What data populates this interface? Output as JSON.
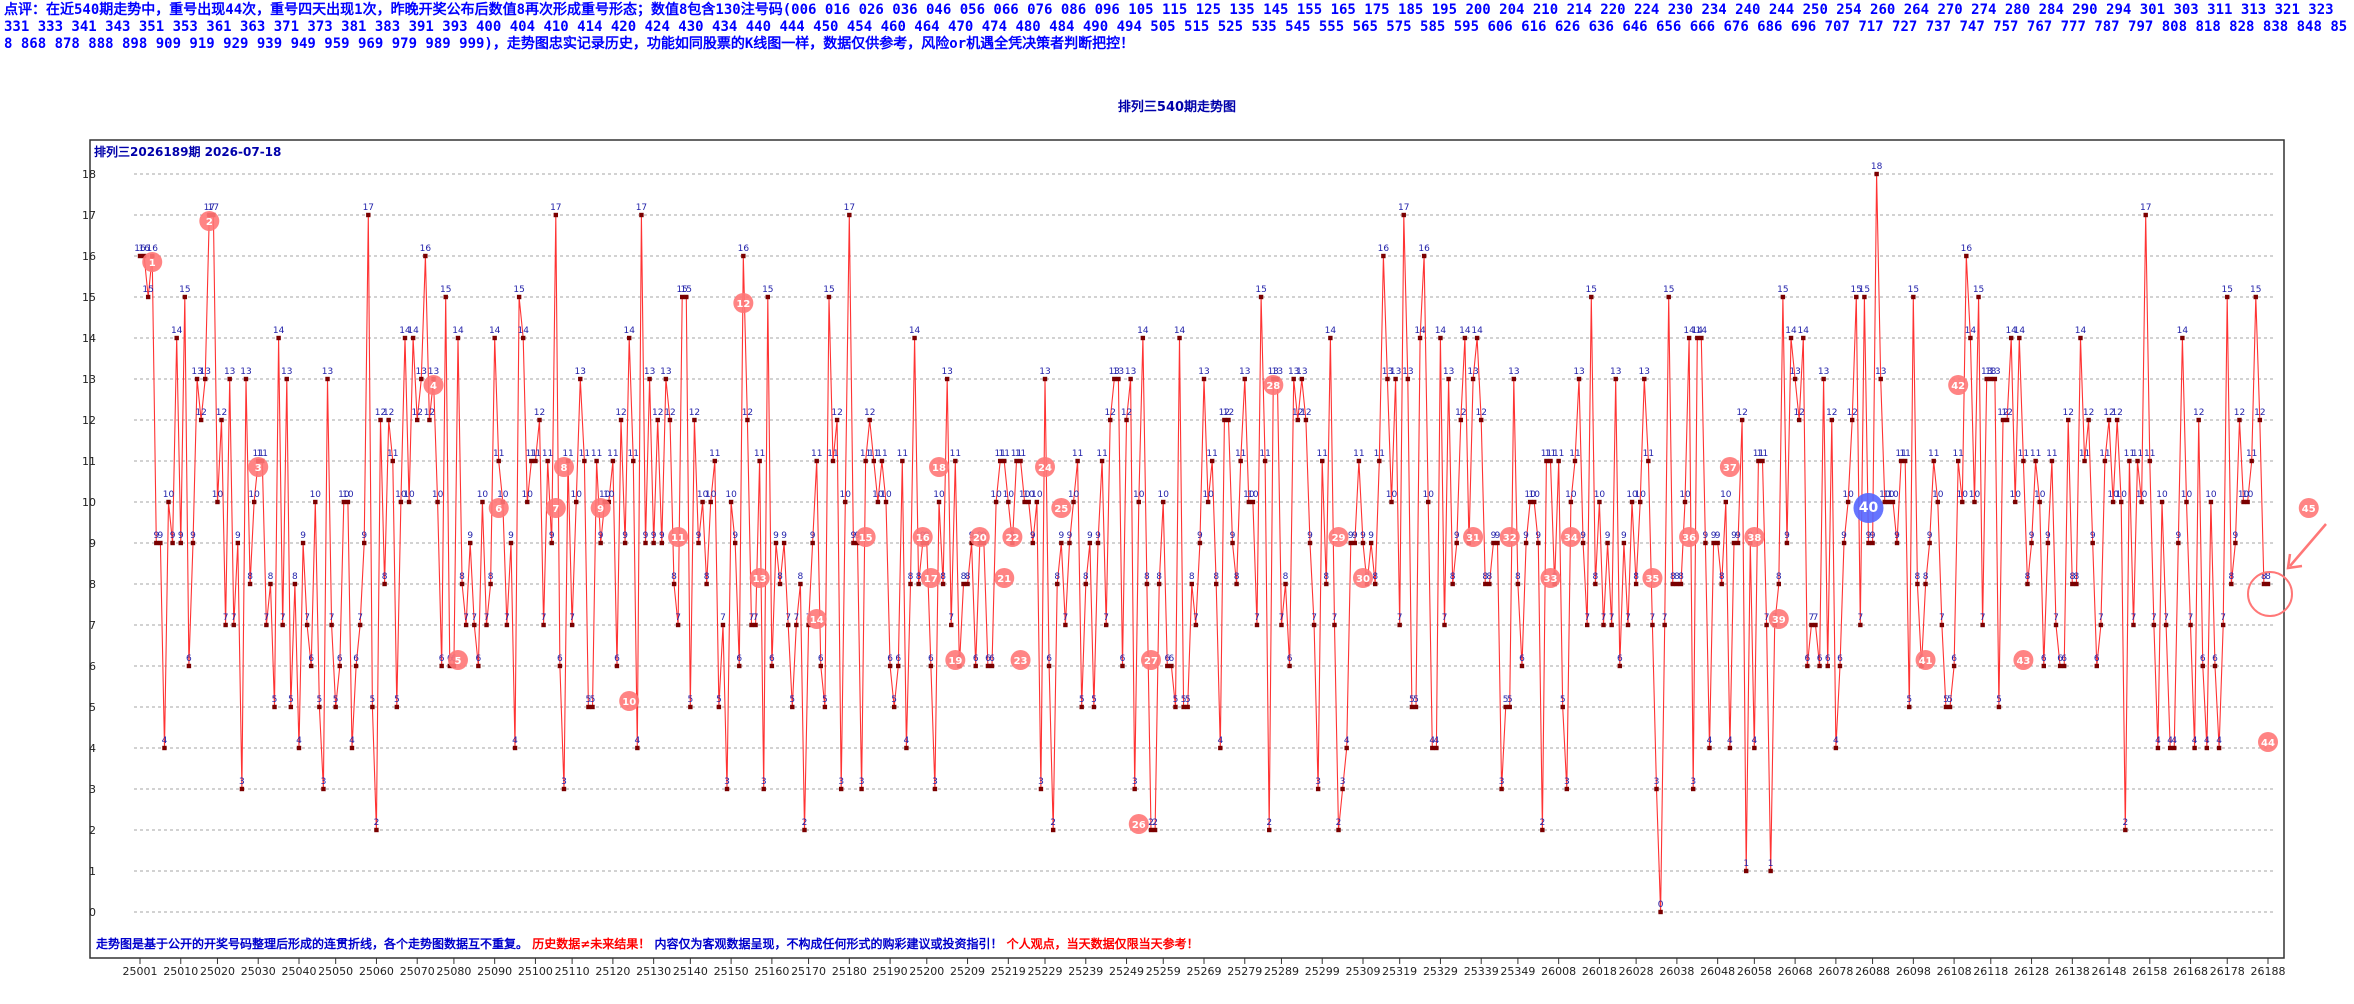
{
  "note_text": "点评：在近540期走势中，重号出现44次，重号四天出现1次，昨晚开奖公布后数值8再次形成重号形态；数值8包含130注号码(006  016  026  036  046  056  066  076  086  096  105  115  125  135  145  155  165  175  185  195  200  204  210  214  220  224  230  234  240  244  250  254  260  264  270  274  280  284  290  294  301  303  311  313  321  323  331  333  341  343  351  353  361  363  371  373  381  383  391  393  400  404  410  414  420  424  430  434  440  444  450  454  460  464  470  474  480  484  490  494  505  515  525  535  545  555  565  575  585  595  606  616  626  636  646  656  666  676  686  696  707  717  727  737  747  757  767  777  787  797  808  818  828  838  848  858  868  878  888  898  909  919  929  939  949  959  969  979  989  999)，走势图忠实记录历史，功能如同股票的K线图一样，数据仅供参考，风险or机遇全凭决策者判断把控！",
  "chart_data": {
    "type": "line",
    "title": "排列三540期走势图",
    "subtitle": "排列三2026189期  2026-07-18",
    "ylim": [
      0,
      18
    ],
    "y_ticks": [
      0,
      1,
      2,
      3,
      4,
      5,
      6,
      7,
      8,
      9,
      10,
      11,
      12,
      13,
      14,
      15,
      16,
      17,
      18
    ],
    "x_tick_labels": [
      "25001",
      "25010",
      "25020",
      "25030",
      "25040",
      "25050",
      "25060",
      "25070",
      "25080",
      "25090",
      "25100",
      "25110",
      "25120",
      "25130",
      "25140",
      "25150",
      "25160",
      "25170",
      "25180",
      "25190",
      "25200",
      "25209",
      "25219",
      "25229",
      "25239",
      "25249",
      "25259",
      "25269",
      "25279",
      "25289",
      "25299",
      "25309",
      "25319",
      "25329",
      "25339",
      "25349",
      "26008",
      "26018",
      "26028",
      "26038",
      "26048",
      "26058",
      "26068",
      "26078",
      "26088",
      "26098",
      "26108",
      "26118",
      "26128",
      "26138",
      "26148",
      "26158",
      "26168",
      "26178",
      "26188"
    ],
    "grid": true,
    "values": [
      16,
      16,
      15,
      16,
      9,
      9,
      4,
      10,
      9,
      14,
      9,
      15,
      6,
      9,
      13,
      12,
      13,
      17,
      17,
      10,
      12,
      7,
      13,
      7,
      9,
      3,
      13,
      8,
      10,
      11,
      11,
      7,
      8,
      5,
      14,
      7,
      13,
      5,
      8,
      4,
      9,
      7,
      6,
      10,
      5,
      3,
      13,
      7,
      5,
      6,
      10,
      10,
      4,
      6,
      7,
      9,
      17,
      5,
      2,
      12,
      8,
      12,
      11,
      5,
      10,
      14,
      10,
      14,
      12,
      13,
      16,
      12,
      13,
      10,
      6,
      15,
      6,
      6,
      14,
      8,
      7,
      9,
      7,
      6,
      10,
      7,
      8,
      14,
      11,
      10,
      7,
      9,
      4,
      15,
      14,
      10,
      11,
      11,
      12,
      7,
      11,
      9,
      17,
      6,
      3,
      11,
      7,
      10,
      13,
      11,
      5,
      5,
      11,
      9,
      10,
      10,
      11,
      6,
      12,
      9,
      14,
      11,
      4,
      17,
      9,
      13,
      9,
      12,
      9,
      13,
      12,
      8,
      7,
      15,
      15,
      5,
      12,
      9,
      10,
      8,
      10,
      11,
      5,
      7,
      3,
      10,
      9,
      6,
      16,
      12,
      7,
      7,
      11,
      3,
      15,
      6,
      9,
      8,
      9,
      7,
      5,
      7,
      8,
      2,
      7,
      9,
      11,
      6,
      5,
      15,
      11,
      12,
      3,
      10,
      17,
      9,
      9,
      3,
      11,
      12,
      11,
      10,
      11,
      10,
      6,
      5,
      6,
      11,
      4,
      8,
      14,
      8,
      9,
      9,
      6,
      3,
      10,
      8,
      13,
      7,
      11,
      6,
      8,
      8,
      9,
      6,
      9,
      9,
      6,
      6,
      10,
      11,
      11,
      10,
      9,
      11,
      11,
      10,
      10,
      9,
      10,
      3,
      13,
      6,
      2,
      8,
      9,
      7,
      9,
      10,
      11,
      5,
      8,
      9,
      5,
      9,
      11,
      7,
      12,
      13,
      13,
      6,
      12,
      13,
      3,
      10,
      14,
      8,
      2,
      2,
      8,
      10,
      6,
      6,
      5,
      14,
      5,
      5,
      8,
      7,
      9,
      13,
      10,
      11,
      8,
      4,
      12,
      12,
      9,
      8,
      11,
      13,
      10,
      10,
      7,
      15,
      11,
      2,
      13,
      13,
      7,
      8,
      6,
      13,
      12,
      13,
      12,
      9,
      7,
      3,
      11,
      8,
      14,
      7,
      2,
      3,
      4,
      9,
      9,
      11,
      9,
      8,
      9,
      8,
      11,
      16,
      13,
      10,
      13,
      7,
      17,
      13,
      5,
      5,
      14,
      16,
      10,
      4,
      4,
      14,
      7,
      13,
      8,
      9,
      12,
      14,
      9,
      13,
      14,
      12,
      8,
      8,
      9,
      9,
      3,
      5,
      5,
      13,
      8,
      6,
      9,
      10,
      10,
      9,
      2,
      11,
      11,
      8,
      11,
      5,
      3,
      10,
      11,
      13,
      9,
      7,
      15,
      8,
      10,
      7,
      9,
      7,
      13,
      6,
      9,
      7,
      10,
      8,
      10,
      13,
      11,
      7,
      3,
      0,
      7,
      15,
      8,
      8,
      8,
      10,
      14,
      3,
      14,
      14,
      9,
      4,
      9,
      9,
      8,
      10,
      4,
      9,
      9,
      12,
      1,
      9,
      4,
      11,
      11,
      7,
      1,
      7,
      8,
      15,
      9,
      14,
      13,
      12,
      14,
      6,
      7,
      7,
      6,
      13,
      6,
      12,
      4,
      6,
      9,
      10,
      12,
      15,
      7,
      15,
      9,
      9,
      18,
      13,
      10,
      10,
      10,
      9,
      11,
      11,
      5,
      15,
      8,
      6,
      8,
      9,
      11,
      10,
      7,
      5,
      5,
      6,
      11,
      10,
      16,
      14,
      10,
      15,
      7,
      13,
      13,
      13,
      5,
      12,
      12,
      14,
      10,
      14,
      11,
      8,
      9,
      11,
      10,
      6,
      9,
      11,
      7,
      6,
      6,
      12,
      8,
      8,
      14,
      11,
      12,
      9,
      6,
      7,
      11,
      12,
      10,
      12,
      10,
      2,
      11,
      7,
      11,
      10,
      17,
      11,
      7,
      4,
      10,
      7,
      4,
      4,
      9,
      14,
      10,
      7,
      4,
      12,
      6,
      4,
      10,
      6,
      4,
      7,
      15,
      8,
      9,
      12,
      10,
      10,
      11,
      15,
      12,
      8,
      8
    ],
    "highlight_badges": [
      {
        "index": 3,
        "value": 16,
        "label": "1"
      },
      {
        "index": 17,
        "value": 17,
        "label": "2"
      },
      {
        "index": 29,
        "value": 11,
        "label": "3"
      },
      {
        "index": 72,
        "value": 13,
        "label": "4"
      },
      {
        "index": 78,
        "value": 6,
        "label": "5"
      },
      {
        "index": 88,
        "value": 10,
        "label": "6"
      },
      {
        "index": 102,
        "value": 10,
        "label": "7"
      },
      {
        "index": 104,
        "value": 11,
        "label": "8"
      },
      {
        "index": 113,
        "value": 10,
        "label": "9"
      },
      {
        "index": 120,
        "value": 5,
        "label": "10"
      },
      {
        "index": 132,
        "value": 9,
        "label": "11"
      },
      {
        "index": 148,
        "value": 15,
        "label": "12"
      },
      {
        "index": 152,
        "value": 8,
        "label": "13"
      },
      {
        "index": 166,
        "value": 7,
        "label": "14"
      },
      {
        "index": 178,
        "value": 9,
        "label": "15"
      },
      {
        "index": 192,
        "value": 9,
        "label": "16"
      },
      {
        "index": 194,
        "value": 8,
        "label": "17"
      },
      {
        "index": 196,
        "value": 11,
        "label": "18"
      },
      {
        "index": 200,
        "value": 6,
        "label": "19"
      },
      {
        "index": 206,
        "value": 9,
        "label": "20"
      },
      {
        "index": 212,
        "value": 8,
        "label": "21"
      },
      {
        "index": 214,
        "value": 9,
        "label": "22"
      },
      {
        "index": 216,
        "value": 6,
        "label": "23"
      },
      {
        "index": 222,
        "value": 11,
        "label": "24"
      },
      {
        "index": 226,
        "value": 10,
        "label": "25"
      },
      {
        "index": 245,
        "value": 2,
        "label": "26"
      },
      {
        "index": 248,
        "value": 6,
        "label": "27"
      },
      {
        "index": 278,
        "value": 13,
        "label": "28"
      },
      {
        "index": 294,
        "value": 9,
        "label": "29"
      },
      {
        "index": 300,
        "value": 8,
        "label": "30"
      },
      {
        "index": 327,
        "value": 9,
        "label": "31"
      },
      {
        "index": 336,
        "value": 9,
        "label": "32"
      },
      {
        "index": 346,
        "value": 8,
        "label": "33"
      },
      {
        "index": 351,
        "value": 9,
        "label": "34"
      },
      {
        "index": 371,
        "value": 8,
        "label": "35"
      },
      {
        "index": 380,
        "value": 9,
        "label": "36"
      },
      {
        "index": 390,
        "value": 11,
        "label": "37"
      },
      {
        "index": 396,
        "value": 9,
        "label": "38"
      },
      {
        "index": 402,
        "value": 7,
        "label": "39"
      },
      {
        "index": 424,
        "value": 10,
        "label": "40"
      },
      {
        "index": 438,
        "value": 6,
        "label": "41"
      },
      {
        "index": 446,
        "value": 13,
        "label": "42"
      },
      {
        "index": 462,
        "value": 6,
        "label": "43"
      },
      {
        "index": 522,
        "value": 4,
        "label": "44"
      },
      {
        "index": 532,
        "value": 10,
        "label": "45"
      }
    ],
    "line_color": "#ff3333",
    "point_color": "#7a0000",
    "label_color": "#2222aa",
    "badge_color": "#ff7777",
    "badge_current_color": "#5566ff"
  },
  "footer": {
    "part1": "走势图是基于公开的开奖号码整理后形成的连贯折线，各个走势图数据互不重复。",
    "part2": "历史数据≠未来结果！",
    "part3": "内容仅为客观数据呈现，不构成任何形式的购彩建议或投资指引！",
    "part4": "个人观点，当天数据仅限当天参考！"
  }
}
